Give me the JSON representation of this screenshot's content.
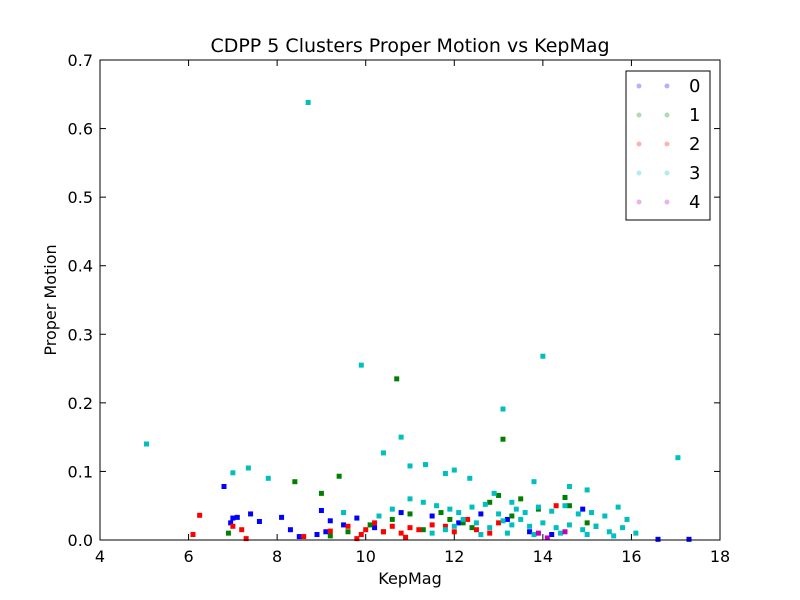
{
  "chart_data": {
    "type": "scatter",
    "title": "CDPP 5 Clusters Proper Motion vs KepMag",
    "xlabel": "KepMag",
    "ylabel": "Proper Motion",
    "xlim": [
      4,
      18
    ],
    "ylim": [
      0.0,
      0.7
    ],
    "xticks": [
      4,
      6,
      8,
      10,
      12,
      14,
      16,
      18
    ],
    "xtick_labels": [
      "4",
      "6",
      "8",
      "10",
      "12",
      "14",
      "16",
      "18"
    ],
    "yticks": [
      0.0,
      0.1,
      0.2,
      0.3,
      0.4,
      0.5,
      0.6,
      0.7
    ],
    "ytick_labels": [
      "0.0",
      "0.1",
      "0.2",
      "0.3",
      "0.4",
      "0.5",
      "0.6",
      "0.7"
    ],
    "grid": false,
    "legend_position": "top-right",
    "series": [
      {
        "name": "0",
        "color": "#0000ff",
        "points": [
          [
            6.8,
            0.078
          ],
          [
            7.0,
            0.032
          ],
          [
            7.1,
            0.033
          ],
          [
            6.95,
            0.025
          ],
          [
            7.4,
            0.038
          ],
          [
            7.6,
            0.027
          ],
          [
            8.1,
            0.033
          ],
          [
            8.3,
            0.015
          ],
          [
            8.5,
            0.005
          ],
          [
            9.0,
            0.043
          ],
          [
            9.2,
            0.028
          ],
          [
            9.5,
            0.022
          ],
          [
            9.8,
            0.032
          ],
          [
            10.2,
            0.018
          ],
          [
            10.8,
            0.04
          ],
          [
            11.5,
            0.035
          ],
          [
            12.1,
            0.025
          ],
          [
            12.6,
            0.038
          ],
          [
            13.2,
            0.03
          ],
          [
            13.7,
            0.012
          ],
          [
            14.2,
            0.008
          ],
          [
            14.9,
            0.045
          ],
          [
            15.2,
            0.02
          ],
          [
            16.6,
            0.001
          ],
          [
            17.3,
            0.001
          ],
          [
            9.1,
            0.012
          ],
          [
            8.9,
            0.008
          ]
        ]
      },
      {
        "name": "1",
        "color": "#008000",
        "points": [
          [
            6.9,
            0.01
          ],
          [
            8.4,
            0.085
          ],
          [
            9.0,
            0.068
          ],
          [
            9.4,
            0.093
          ],
          [
            10.7,
            0.235
          ],
          [
            13.1,
            0.147
          ],
          [
            9.6,
            0.012
          ],
          [
            10.1,
            0.022
          ],
          [
            10.6,
            0.03
          ],
          [
            11.0,
            0.038
          ],
          [
            11.3,
            0.015
          ],
          [
            11.7,
            0.04
          ],
          [
            12.2,
            0.025
          ],
          [
            12.8,
            0.055
          ],
          [
            13.0,
            0.065
          ],
          [
            13.5,
            0.06
          ],
          [
            13.9,
            0.045
          ],
          [
            14.5,
            0.062
          ],
          [
            14.6,
            0.05
          ],
          [
            9.2,
            0.006
          ],
          [
            10.4,
            0.012
          ],
          [
            11.9,
            0.03
          ],
          [
            12.4,
            0.018
          ],
          [
            13.3,
            0.035
          ],
          [
            15.0,
            0.025
          ]
        ]
      },
      {
        "name": "2",
        "color": "#ff0000",
        "points": [
          [
            6.1,
            0.008
          ],
          [
            6.25,
            0.036
          ],
          [
            7.0,
            0.02
          ],
          [
            7.2,
            0.015
          ],
          [
            7.3,
            0.002
          ],
          [
            8.6,
            0.005
          ],
          [
            9.2,
            0.013
          ],
          [
            9.6,
            0.02
          ],
          [
            9.9,
            0.008
          ],
          [
            10.0,
            0.015
          ],
          [
            10.2,
            0.025
          ],
          [
            10.4,
            0.012
          ],
          [
            10.6,
            0.02
          ],
          [
            10.8,
            0.01
          ],
          [
            11.0,
            0.018
          ],
          [
            11.2,
            0.015
          ],
          [
            11.5,
            0.022
          ],
          [
            11.8,
            0.02
          ],
          [
            12.0,
            0.012
          ],
          [
            12.3,
            0.03
          ],
          [
            12.5,
            0.015
          ],
          [
            12.8,
            0.01
          ],
          [
            13.0,
            0.025
          ],
          [
            14.3,
            0.05
          ],
          [
            9.8,
            0.002
          ],
          [
            10.9,
            0.004
          ]
        ]
      },
      {
        "name": "3",
        "color": "#00bfbf",
        "points": [
          [
            8.7,
            0.638
          ],
          [
            5.05,
            0.14
          ],
          [
            7.0,
            0.098
          ],
          [
            7.35,
            0.105
          ],
          [
            7.8,
            0.09
          ],
          [
            9.9,
            0.255
          ],
          [
            10.4,
            0.127
          ],
          [
            10.8,
            0.15
          ],
          [
            11.0,
            0.108
          ],
          [
            11.35,
            0.11
          ],
          [
            11.8,
            0.097
          ],
          [
            12.0,
            0.102
          ],
          [
            12.35,
            0.09
          ],
          [
            13.1,
            0.191
          ],
          [
            14.0,
            0.268
          ],
          [
            13.8,
            0.085
          ],
          [
            12.9,
            0.068
          ],
          [
            13.3,
            0.055
          ],
          [
            14.6,
            0.078
          ],
          [
            15.0,
            0.073
          ],
          [
            17.05,
            0.12
          ],
          [
            9.5,
            0.04
          ],
          [
            10.3,
            0.035
          ],
          [
            10.6,
            0.045
          ],
          [
            11.0,
            0.06
          ],
          [
            11.3,
            0.055
          ],
          [
            11.6,
            0.05
          ],
          [
            11.9,
            0.045
          ],
          [
            12.1,
            0.04
          ],
          [
            12.4,
            0.048
          ],
          [
            12.7,
            0.052
          ],
          [
            13.0,
            0.038
          ],
          [
            13.4,
            0.045
          ],
          [
            13.6,
            0.04
          ],
          [
            13.9,
            0.048
          ],
          [
            14.2,
            0.042
          ],
          [
            14.5,
            0.05
          ],
          [
            14.8,
            0.038
          ],
          [
            15.1,
            0.04
          ],
          [
            15.4,
            0.035
          ],
          [
            15.7,
            0.048
          ],
          [
            15.9,
            0.03
          ],
          [
            16.1,
            0.01
          ],
          [
            12.0,
            0.02
          ],
          [
            12.2,
            0.03
          ],
          [
            12.5,
            0.025
          ],
          [
            12.8,
            0.018
          ],
          [
            13.1,
            0.028
          ],
          [
            13.3,
            0.022
          ],
          [
            13.5,
            0.03
          ],
          [
            13.7,
            0.02
          ],
          [
            14.0,
            0.025
          ],
          [
            14.3,
            0.018
          ],
          [
            14.6,
            0.022
          ],
          [
            14.9,
            0.015
          ],
          [
            15.2,
            0.02
          ],
          [
            15.5,
            0.012
          ],
          [
            15.8,
            0.018
          ],
          [
            11.5,
            0.01
          ],
          [
            11.8,
            0.015
          ],
          [
            12.6,
            0.008
          ],
          [
            13.2,
            0.01
          ],
          [
            13.8,
            0.008
          ],
          [
            14.4,
            0.01
          ],
          [
            15.0,
            0.008
          ],
          [
            15.6,
            0.006
          ]
        ]
      },
      {
        "name": "4",
        "color": "#bf00bf",
        "points": [
          [
            13.9,
            0.01
          ],
          [
            14.1,
            0.003
          ],
          [
            14.5,
            0.012
          ]
        ]
      }
    ]
  }
}
